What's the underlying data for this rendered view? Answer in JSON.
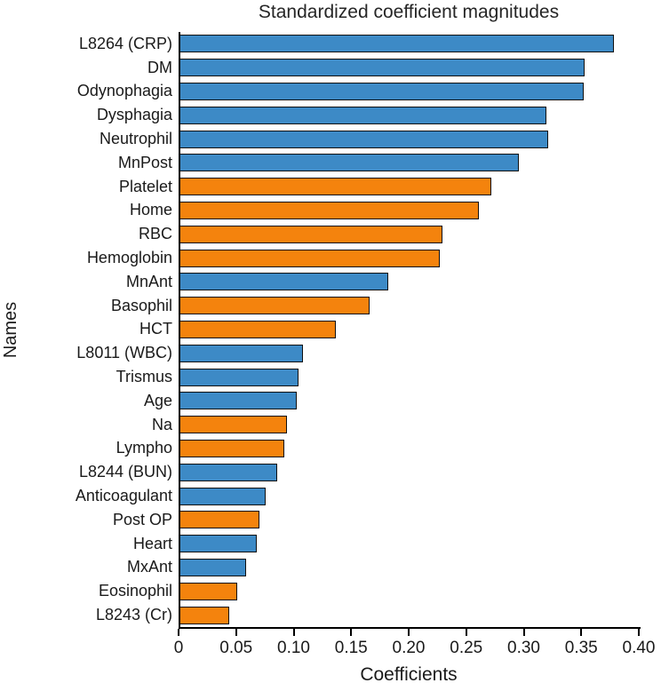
{
  "chart_data": {
    "type": "bar",
    "orientation": "horizontal",
    "title": "Standardized coefficient magnitudes",
    "xlabel": "Coefficients",
    "ylabel": "Names",
    "xlim": [
      0,
      0.4
    ],
    "xticks": [
      0,
      0.05,
      0.1,
      0.15,
      0.2,
      0.25,
      0.3,
      0.35,
      0.4
    ],
    "xtick_labels": [
      "0",
      "0.05",
      "0.10",
      "0.15",
      "0.20",
      "0.25",
      "0.30",
      "0.35",
      "0.40"
    ],
    "grid": false,
    "legend": "none",
    "colors": {
      "blue": "#3d8ac6",
      "orange": "#f4830d",
      "edge": "#101010"
    },
    "bars": [
      {
        "label": "L8264 (CRP)",
        "value": 0.378,
        "color": "blue"
      },
      {
        "label": "DM",
        "value": 0.353,
        "color": "blue"
      },
      {
        "label": "Odynophagia",
        "value": 0.352,
        "color": "blue"
      },
      {
        "label": "Dysphagia",
        "value": 0.32,
        "color": "blue"
      },
      {
        "label": "Neutrophil",
        "value": 0.321,
        "color": "blue"
      },
      {
        "label": "MnPost",
        "value": 0.296,
        "color": "blue"
      },
      {
        "label": "Platelet",
        "value": 0.272,
        "color": "orange"
      },
      {
        "label": "Home",
        "value": 0.261,
        "color": "orange"
      },
      {
        "label": "RBC",
        "value": 0.229,
        "color": "orange"
      },
      {
        "label": "Hemoglobin",
        "value": 0.227,
        "color": "orange"
      },
      {
        "label": "MnAnt",
        "value": 0.182,
        "color": "blue"
      },
      {
        "label": "Basophil",
        "value": 0.166,
        "color": "orange"
      },
      {
        "label": "HCT",
        "value": 0.137,
        "color": "orange"
      },
      {
        "label": "L8011 (WBC)",
        "value": 0.108,
        "color": "blue"
      },
      {
        "label": "Trismus",
        "value": 0.104,
        "color": "blue"
      },
      {
        "label": "Age",
        "value": 0.103,
        "color": "blue"
      },
      {
        "label": "Na",
        "value": 0.094,
        "color": "orange"
      },
      {
        "label": "Lympho",
        "value": 0.092,
        "color": "orange"
      },
      {
        "label": "L8244 (BUN)",
        "value": 0.086,
        "color": "blue"
      },
      {
        "label": "Anticoagulant",
        "value": 0.076,
        "color": "blue"
      },
      {
        "label": "Post OP",
        "value": 0.07,
        "color": "orange"
      },
      {
        "label": "Heart",
        "value": 0.068,
        "color": "blue"
      },
      {
        "label": "MxAnt",
        "value": 0.059,
        "color": "blue"
      },
      {
        "label": "Eosinophil",
        "value": 0.051,
        "color": "orange"
      },
      {
        "label": "L8243 (Cr)",
        "value": 0.044,
        "color": "orange"
      }
    ]
  }
}
